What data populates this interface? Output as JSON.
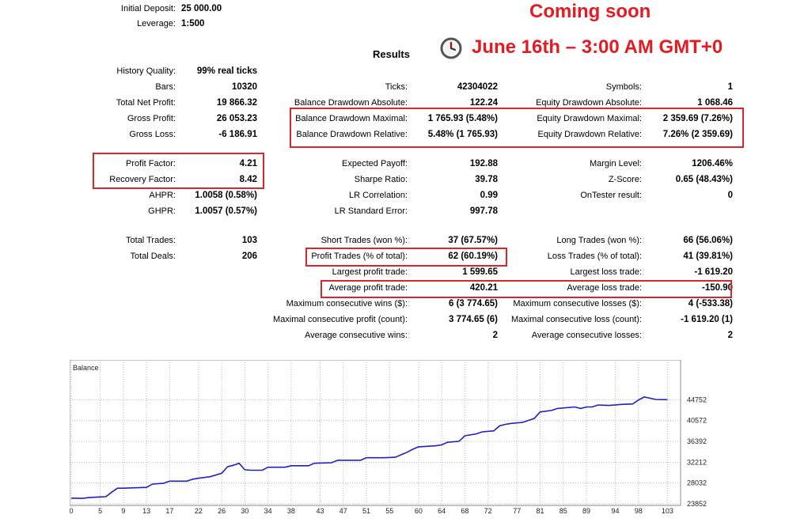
{
  "header": {
    "initial_deposit_label": "Initial Deposit:",
    "initial_deposit_value": "25 000.00",
    "leverage_label": "Leverage:",
    "leverage_value": "1:500",
    "results_title": "Results"
  },
  "promo": {
    "line1": "Coming soon",
    "line2": "June 16th – 3:00 AM GMT+0",
    "color": "#e31b23"
  },
  "col1": [
    {
      "label": "History Quality:",
      "value": "99% real ticks"
    },
    {
      "label": "Bars:",
      "value": "10320"
    },
    {
      "label": "Total Net Profit:",
      "value": "19 866.32"
    },
    {
      "label": "Gross Profit:",
      "value": "26 053.23"
    },
    {
      "label": "Gross Loss:",
      "value": "-6 186.91"
    },
    {
      "label": "Profit Factor:",
      "value": "4.21"
    },
    {
      "label": "Recovery Factor:",
      "value": "8.42"
    },
    {
      "label": "AHPR:",
      "value": "1.0058 (0.58%)"
    },
    {
      "label": "GHPR:",
      "value": "1.0057 (0.57%)"
    },
    {
      "label": "Total Trades:",
      "value": "103"
    },
    {
      "label": "Total Deals:",
      "value": "206"
    }
  ],
  "col2": [
    {
      "label": "Ticks:",
      "value": "42304022"
    },
    {
      "label": "Balance Drawdown Absolute:",
      "value": "122.24"
    },
    {
      "label": "Balance Drawdown Maximal:",
      "value": "1 765.93 (5.48%)"
    },
    {
      "label": "Balance Drawdown Relative:",
      "value": "5.48% (1 765.93)"
    },
    {
      "label": "Expected Payoff:",
      "value": "192.88"
    },
    {
      "label": "Sharpe Ratio:",
      "value": "39.78"
    },
    {
      "label": "LR Correlation:",
      "value": "0.99"
    },
    {
      "label": "LR Standard Error:",
      "value": "997.78"
    },
    {
      "label": "Short Trades (won %):",
      "value": "37 (67.57%)"
    },
    {
      "label": "Profit Trades (% of total):",
      "value": "62 (60.19%)"
    },
    {
      "label": "Largest profit trade:",
      "value": "1 599.65"
    },
    {
      "label": "Average profit trade:",
      "value": "420.21"
    },
    {
      "label": "Maximum consecutive wins ($):",
      "value": "6 (3 774.65)"
    },
    {
      "label": "Maximal consecutive profit (count):",
      "value": "3 774.65 (6)"
    },
    {
      "label": "Average consecutive wins:",
      "value": "2"
    }
  ],
  "col3": [
    {
      "label": "Symbols:",
      "value": "1"
    },
    {
      "label": "Equity Drawdown Absolute:",
      "value": "1 068.46"
    },
    {
      "label": "Equity Drawdown Maximal:",
      "value": "2 359.69 (7.26%)"
    },
    {
      "label": "Equity Drawdown Relative:",
      "value": "7.26% (2 359.69)"
    },
    {
      "label": "Margin Level:",
      "value": "1206.46%"
    },
    {
      "label": "Z-Score:",
      "value": "0.65 (48.43%)"
    },
    {
      "label": "OnTester result:",
      "value": "0"
    },
    {
      "label": "Long Trades (won %):",
      "value": "66 (56.06%)"
    },
    {
      "label": "Loss Trades (% of total):",
      "value": "41 (39.81%)"
    },
    {
      "label": "Largest loss trade:",
      "value": "-1 619.20"
    },
    {
      "label": "Average loss trade:",
      "value": "-150.90"
    },
    {
      "label": "Maximum consecutive losses ($):",
      "value": "4 (-533.38)"
    },
    {
      "label": "Maximal consecutive loss (count):",
      "value": "-1 619.20 (1)"
    },
    {
      "label": "Average consecutive losses:",
      "value": "2"
    }
  ],
  "chart_data": {
    "type": "line",
    "title": "Balance",
    "line_color": "#2020c0",
    "xlim": [
      0,
      105
    ],
    "ylim": [
      23852,
      48932
    ],
    "x_ticks": [
      0,
      5,
      9,
      13,
      17,
      22,
      26,
      30,
      34,
      38,
      43,
      47,
      51,
      55,
      60,
      64,
      68,
      72,
      77,
      81,
      85,
      89,
      94,
      98,
      103
    ],
    "y_ticks": [
      23852,
      28032,
      32212,
      36392,
      40572,
      44752
    ],
    "grid": true,
    "series": [
      {
        "x": [
          0,
          2,
          3,
          6,
          7,
          8,
          9,
          13,
          14,
          15,
          16,
          17,
          20,
          21,
          22,
          24,
          26,
          27,
          28,
          29,
          30,
          31,
          33,
          34,
          37,
          38,
          41,
          42,
          45,
          46,
          50,
          51,
          54,
          56,
          58,
          59,
          60,
          63,
          64,
          65,
          67,
          68,
          70,
          71,
          73,
          74,
          75,
          76,
          78,
          80,
          81,
          83,
          84,
          87,
          88,
          89,
          90,
          91,
          93,
          95,
          97,
          98,
          99,
          101,
          103
        ],
        "y": [
          25000,
          24950,
          25100,
          25300,
          26200,
          27000,
          27000,
          27150,
          27800,
          27900,
          28000,
          28400,
          28400,
          28800,
          29000,
          29300,
          30000,
          31300,
          31600,
          32000,
          30700,
          30600,
          30600,
          31200,
          31200,
          31500,
          31500,
          32000,
          32100,
          32600,
          32600,
          33100,
          33100,
          33200,
          34200,
          34800,
          35300,
          35500,
          35700,
          36200,
          36400,
          37500,
          37900,
          38300,
          38500,
          39500,
          39800,
          40000,
          40200,
          41000,
          42300,
          42600,
          43000,
          43300,
          43000,
          43300,
          43300,
          43700,
          43600,
          43800,
          43900,
          44700,
          45300,
          44800,
          44750
        ]
      }
    ]
  }
}
